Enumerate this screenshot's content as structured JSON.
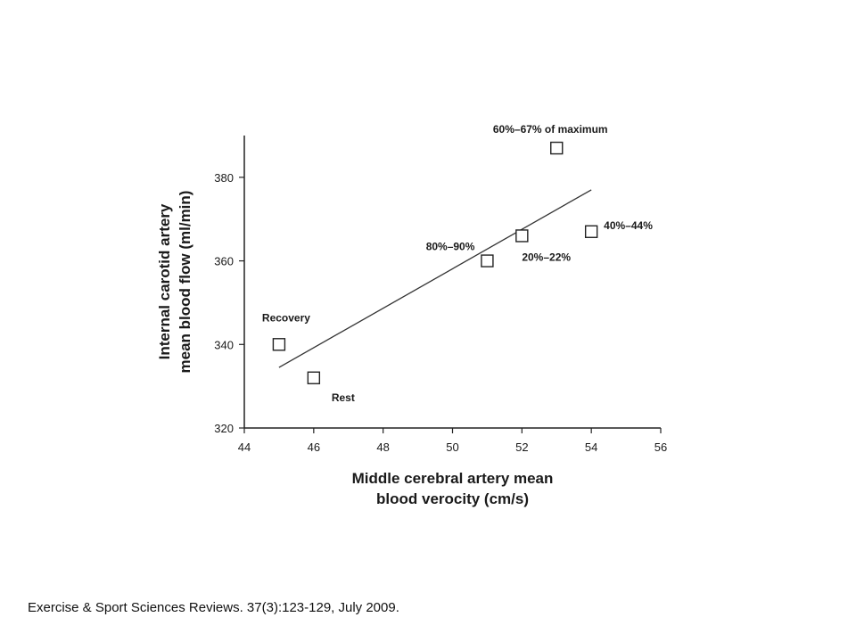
{
  "caption": "Exercise & Sport Sciences Reviews. 37(3):123-129, July 2009.",
  "chart_data": {
    "type": "scatter",
    "title": "",
    "xlabel_lines": [
      "Middle cerebral artery mean",
      "blood verocity (cm/s)"
    ],
    "ylabel_lines": [
      "Internal carotid artery",
      "mean blood flow (ml/min)"
    ],
    "xlim": [
      44,
      56
    ],
    "ylim": [
      320,
      390
    ],
    "xticks": [
      44,
      46,
      48,
      50,
      52,
      54,
      56
    ],
    "yticks": [
      320,
      340,
      360,
      380
    ],
    "x_tick_labels": [
      "44",
      "46",
      "48",
      "50",
      "52",
      "54",
      "56"
    ],
    "y_tick_labels": [
      "320",
      "340",
      "360",
      "380"
    ],
    "marker": "open-square",
    "grid": false,
    "points": [
      {
        "x": 45,
        "y": 340,
        "label": "Recovery"
      },
      {
        "x": 46,
        "y": 332,
        "label": "Rest"
      },
      {
        "x": 51,
        "y": 360,
        "label": "80%–90%"
      },
      {
        "x": 52,
        "y": 366,
        "label": "20%–22%"
      },
      {
        "x": 53,
        "y": 387,
        "label": "60%–67% of maximum"
      },
      {
        "x": 54,
        "y": 367,
        "label": "40%–44%"
      }
    ],
    "trendline": {
      "x": [
        45,
        54
      ],
      "y": [
        334.5,
        377
      ]
    }
  }
}
